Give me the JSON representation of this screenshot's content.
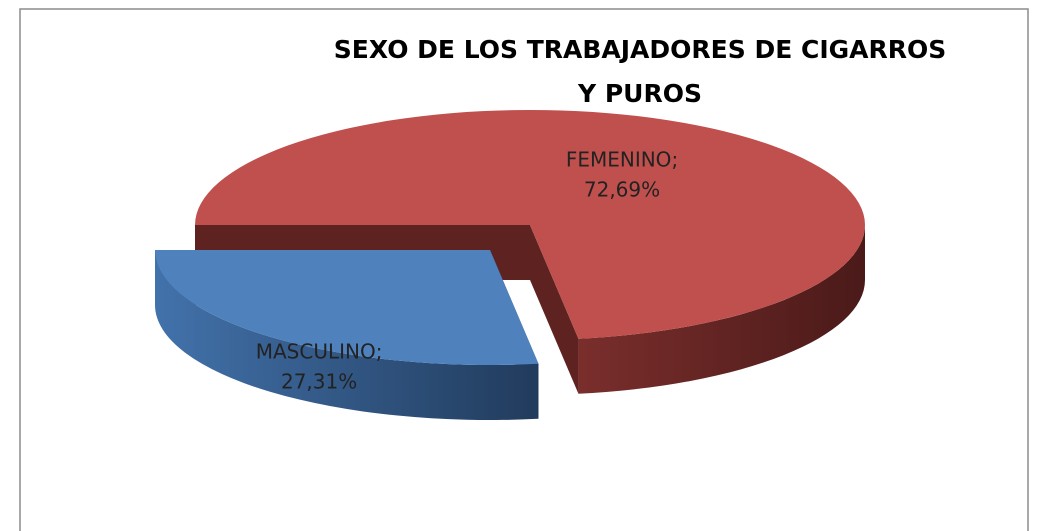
{
  "chart_data": {
    "type": "pie3d",
    "title": "SEXO DE LOS TRABAJADORES DE CIGARROS Y PUROS",
    "categories": [
      "MASCULINO",
      "FEMENINO"
    ],
    "values": [
      27.31,
      72.69
    ],
    "value_labels": [
      "27,31%",
      "72,69%"
    ],
    "label_separator": ";",
    "colors": [
      "#4f81bd",
      "#c0504d"
    ]
  }
}
